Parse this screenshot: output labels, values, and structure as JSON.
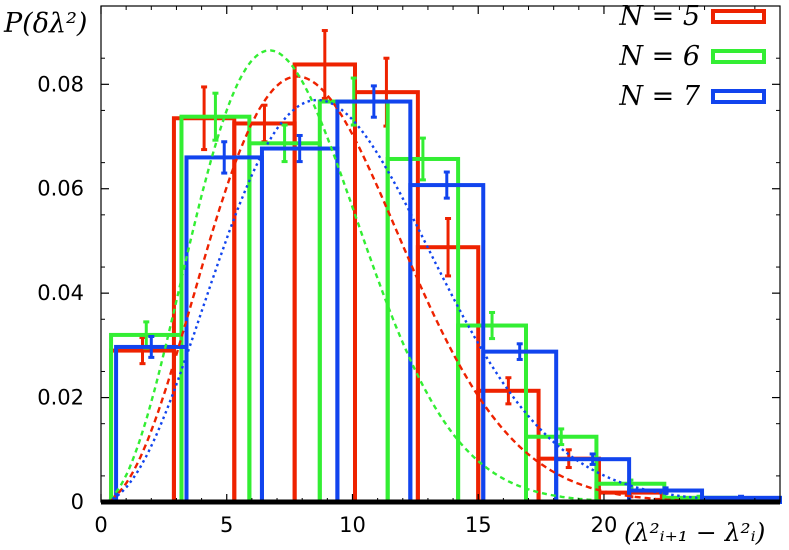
{
  "chart_data": {
    "type": "bar",
    "title": "",
    "ylabel": "P(δλ²)",
    "xlabel": "(λ²ᵢ₊₁ − λ²ᵢ)",
    "xlim": [
      0,
      27
    ],
    "ylim": [
      0,
      0.095
    ],
    "x_ticks": [
      0,
      5,
      10,
      15,
      20
    ],
    "x_tick_labels": [
      "0",
      "5",
      "10",
      "15",
      "20"
    ],
    "y_ticks": [
      0,
      0.02,
      0.04,
      0.06,
      0.08
    ],
    "y_tick_labels": [
      "0",
      "0.02",
      "0.04",
      "0.06",
      "0.08"
    ],
    "grid": false,
    "legend_position": "top-right",
    "series": [
      {
        "name": "N = 5",
        "color": "#ee2200",
        "bins": [
          {
            "x0": 0.4,
            "x1": 2.9,
            "y": 0.029
          },
          {
            "x0": 2.9,
            "x1": 5.3,
            "y": 0.0735
          },
          {
            "x0": 5.3,
            "x1": 7.7,
            "y": 0.0725
          },
          {
            "x0": 7.7,
            "x1": 10.1,
            "y": 0.0838
          },
          {
            "x0": 10.1,
            "x1": 12.6,
            "y": 0.0785
          },
          {
            "x0": 12.6,
            "x1": 15.0,
            "y": 0.0488
          },
          {
            "x0": 15.0,
            "x1": 17.4,
            "y": 0.0213
          },
          {
            "x0": 17.4,
            "x1": 19.8,
            "y": 0.0083
          },
          {
            "x0": 19.8,
            "x1": 22.3,
            "y": 0.0018
          },
          {
            "x0": 22.3,
            "x1": 24.7,
            "y": 0.0003
          },
          {
            "x0": 24.7,
            "x1": 27.0,
            "y": 0.0001
          }
        ],
        "errors": [
          0.0025,
          0.006,
          0.0035,
          0.0065,
          0.0065,
          0.0055,
          0.0025,
          0.0017,
          0.0008,
          0.0004,
          0.0002
        ],
        "fit": {
          "peak_x": 7.8,
          "peak_y": 0.0815
        }
      },
      {
        "name": "N = 6",
        "color": "#33ee33",
        "bins": [
          {
            "x0": 0.4,
            "x1": 3.2,
            "y": 0.032
          },
          {
            "x0": 3.2,
            "x1": 5.9,
            "y": 0.0738
          },
          {
            "x0": 5.9,
            "x1": 8.7,
            "y": 0.0687
          },
          {
            "x0": 8.7,
            "x1": 11.4,
            "y": 0.0767
          },
          {
            "x0": 11.4,
            "x1": 14.2,
            "y": 0.0657
          },
          {
            "x0": 14.2,
            "x1": 16.9,
            "y": 0.0338
          },
          {
            "x0": 16.9,
            "x1": 19.7,
            "y": 0.0125
          },
          {
            "x0": 19.7,
            "x1": 22.4,
            "y": 0.0035
          },
          {
            "x0": 22.4,
            "x1": 25.2,
            "y": 0.0008
          },
          {
            "x0": 25.2,
            "x1": 27.0,
            "y": 0.0002
          }
        ],
        "errors": [
          0.0025,
          0.0045,
          0.0035,
          0.0045,
          0.004,
          0.0025,
          0.0015,
          0.0007,
          0.0003,
          0.0001
        ],
        "fit": {
          "peak_x": 6.7,
          "peak_y": 0.0865
        }
      },
      {
        "name": "N = 7",
        "color": "#1144ee",
        "bins": [
          {
            "x0": 0.6,
            "x1": 3.4,
            "y": 0.0297
          },
          {
            "x0": 3.4,
            "x1": 6.4,
            "y": 0.066
          },
          {
            "x0": 6.4,
            "x1": 9.4,
            "y": 0.0677
          },
          {
            "x0": 9.4,
            "x1": 12.3,
            "y": 0.0767
          },
          {
            "x0": 12.3,
            "x1": 15.2,
            "y": 0.0607
          },
          {
            "x0": 15.2,
            "x1": 18.1,
            "y": 0.0288
          },
          {
            "x0": 18.1,
            "x1": 21.0,
            "y": 0.0082
          },
          {
            "x0": 21.0,
            "x1": 23.9,
            "y": 0.0022
          },
          {
            "x0": 23.9,
            "x1": 27.0,
            "y": 0.0008
          }
        ],
        "errors": [
          0.002,
          0.003,
          0.0025,
          0.003,
          0.0025,
          0.0015,
          0.001,
          0.0005,
          0.0003
        ],
        "fit": {
          "peak_x": 8.6,
          "peak_y": 0.077
        }
      }
    ]
  }
}
